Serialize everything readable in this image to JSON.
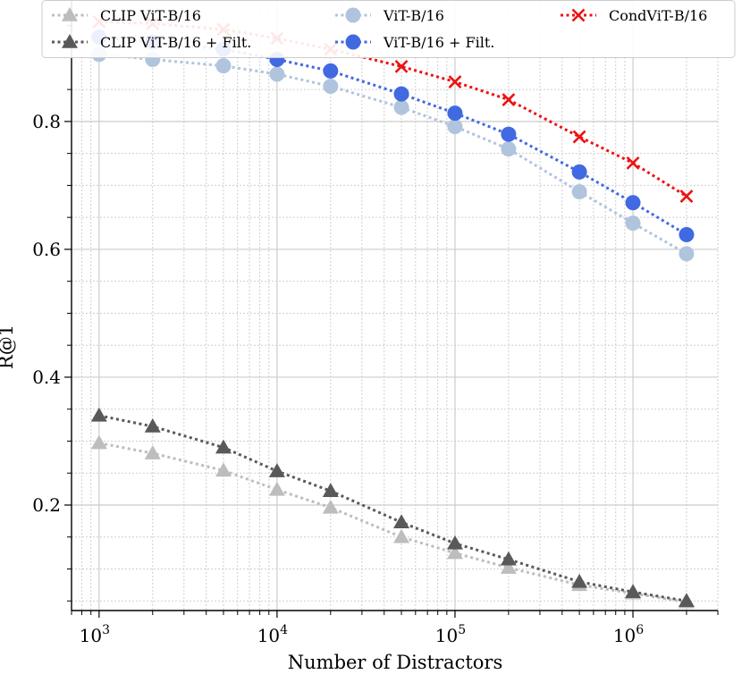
{
  "chart_data": {
    "type": "line",
    "title": "",
    "xlabel": "Number of Distractors",
    "ylabel": "R@1",
    "xscale": "log",
    "xlim": [
      700,
      3000000
    ],
    "ylim": [
      0.035,
      0.99
    ],
    "x": [
      1000,
      2000,
      5000,
      10000,
      20000,
      50000,
      100000,
      200000,
      500000,
      1000000,
      2000000
    ],
    "x_tick_labels": [
      {
        "base": "10",
        "exp": "3",
        "value": 1000
      },
      {
        "base": "10",
        "exp": "4",
        "value": 10000
      },
      {
        "base": "10",
        "exp": "5",
        "value": 100000
      },
      {
        "base": "10",
        "exp": "6",
        "value": 1000000
      }
    ],
    "y_ticks": [
      0.2,
      0.4,
      0.6,
      0.8
    ],
    "y_tick_labels": [
      "0.2",
      "0.4",
      "0.6",
      "0.8"
    ],
    "grid": true,
    "legend_position": "top",
    "series": [
      {
        "name": "CLIP ViT-B/16",
        "color": "#bdbdbd",
        "marker": "triangle",
        "values": [
          0.297,
          0.281,
          0.254,
          0.224,
          0.196,
          0.15,
          0.125,
          0.102,
          0.075,
          0.062,
          0.048
        ]
      },
      {
        "name": "CLIP ViT-B/16 + Filt.",
        "color": "#595959",
        "marker": "triangle",
        "values": [
          0.34,
          0.323,
          0.29,
          0.253,
          0.222,
          0.173,
          0.14,
          0.115,
          0.08,
          0.064,
          0.05
        ]
      },
      {
        "name": "ViT-B/16",
        "color": "#b0c4de",
        "marker": "circle",
        "values": [
          0.905,
          0.897,
          0.887,
          0.874,
          0.855,
          0.822,
          0.792,
          0.757,
          0.69,
          0.641,
          0.593
        ]
      },
      {
        "name": "ViT-B/16 + Filt.",
        "color": "#4169e1",
        "marker": "circle",
        "values": [
          0.932,
          0.924,
          0.913,
          0.897,
          0.879,
          0.843,
          0.813,
          0.78,
          0.721,
          0.673,
          0.623
        ]
      },
      {
        "name": "CondViT-B/16",
        "color": "#ee1111",
        "marker": "x",
        "values": [
          0.956,
          0.953,
          0.944,
          0.93,
          0.913,
          0.886,
          0.862,
          0.834,
          0.776,
          0.735,
          0.683
        ]
      }
    ]
  }
}
